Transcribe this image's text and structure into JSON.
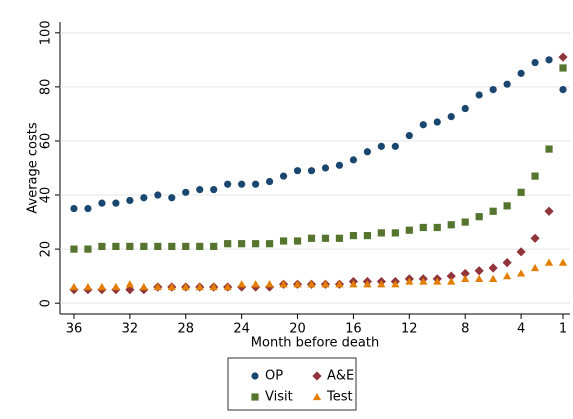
{
  "chart_data": {
    "type": "scatter",
    "x_label": "Month before death",
    "y_label": "Average costs",
    "x": [
      36,
      35,
      34,
      33,
      32,
      31,
      30,
      29,
      28,
      27,
      26,
      25,
      24,
      23,
      22,
      21,
      20,
      19,
      18,
      17,
      16,
      15,
      14,
      13,
      12,
      11,
      10,
      9,
      8,
      7,
      6,
      5,
      4,
      3,
      2,
      1
    ],
    "series": [
      {
        "name": "OP",
        "color": "#1a476f",
        "marker": "circle",
        "values": [
          35,
          35,
          37,
          37,
          38,
          39,
          40,
          39,
          41,
          42,
          42,
          44,
          44,
          44,
          45,
          47,
          49,
          49,
          50,
          51,
          53,
          56,
          58,
          58,
          62,
          66,
          67,
          69,
          72,
          77,
          79,
          81,
          85,
          89,
          90,
          79
        ]
      },
      {
        "name": "A&E",
        "color": "#90353b",
        "marker": "diamond",
        "values": [
          5,
          5,
          5,
          5,
          5,
          5,
          6,
          6,
          6,
          6,
          6,
          6,
          6,
          6,
          6,
          7,
          7,
          7,
          7,
          7,
          8,
          8,
          8,
          8,
          9,
          9,
          9,
          10,
          11,
          12,
          13,
          15,
          19,
          24,
          34,
          91
        ]
      },
      {
        "name": "Visit",
        "color": "#55752f",
        "marker": "square",
        "values": [
          20,
          20,
          21,
          21,
          21,
          21,
          21,
          21,
          21,
          21,
          21,
          22,
          22,
          22,
          22,
          23,
          23,
          24,
          24,
          24,
          25,
          25,
          26,
          26,
          27,
          28,
          28,
          29,
          30,
          32,
          34,
          36,
          41,
          47,
          57,
          87
        ]
      },
      {
        "name": "Test",
        "color": "#e37e00",
        "marker": "triangle",
        "values": [
          6,
          6,
          6,
          6,
          7,
          6,
          6,
          6,
          6,
          6,
          6,
          6,
          7,
          7,
          7,
          7,
          7,
          7,
          7,
          7,
          7,
          7,
          7,
          7,
          8,
          8,
          8,
          8,
          9,
          9,
          9,
          10,
          11,
          13,
          15,
          15
        ]
      }
    ],
    "xlim": [
      37,
      0.5
    ],
    "xticks": [
      36,
      32,
      28,
      24,
      20,
      16,
      12,
      8,
      4,
      1
    ],
    "ylim": [
      -4,
      104
    ],
    "yticks": [
      0,
      20,
      40,
      60,
      80,
      100
    ],
    "grid": true
  }
}
